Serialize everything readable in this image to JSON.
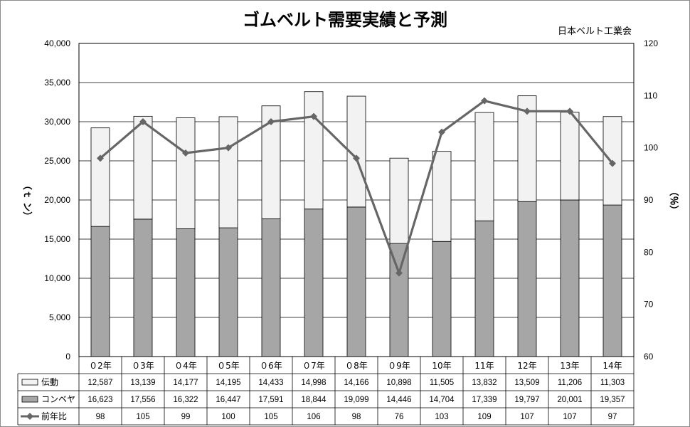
{
  "chart_data": {
    "type": "bar",
    "title": "ゴムベルト需要実績と予測",
    "source": "日本ベルト工業会",
    "ylabel_left": "（ｔ ン）",
    "ylabel_right": "（％）",
    "categories": [
      "０2年",
      "０3年",
      "０4年",
      "０5年",
      "０6年",
      "０7年",
      "０8年",
      "０9年",
      "10年",
      "11年",
      "12年",
      "13年",
      "14年"
    ],
    "series": [
      {
        "name": "伝動",
        "kind": "stacked-bar",
        "color": "#f2f2f2",
        "values": [
          12587,
          13139,
          14177,
          14195,
          14433,
          14998,
          14166,
          10898,
          11505,
          13832,
          13509,
          11206,
          11303
        ],
        "labels": [
          "12,587",
          "13,139",
          "14,177",
          "14,195",
          "14,433",
          "14,998",
          "14,166",
          "10,898",
          "11,505",
          "13,832",
          "13,509",
          "11,206",
          "11,303"
        ]
      },
      {
        "name": "コンベヤ",
        "kind": "stacked-bar",
        "color": "#a6a6a6",
        "values": [
          16623,
          17556,
          16322,
          16447,
          17591,
          18844,
          19099,
          14446,
          14704,
          17339,
          19797,
          20001,
          19357
        ],
        "labels": [
          "16,623",
          "17,556",
          "16,322",
          "16,447",
          "17,591",
          "18,844",
          "19,099",
          "14,446",
          "14,704",
          "17,339",
          "19,797",
          "20,001",
          "19,357"
        ]
      },
      {
        "name": "前年比",
        "kind": "line",
        "axis": "right",
        "color": "#666666",
        "values": [
          98,
          105,
          99,
          100,
          105,
          106,
          98,
          76,
          103,
          109,
          107,
          107,
          97
        ],
        "labels": [
          "98",
          "105",
          "99",
          "100",
          "105",
          "106",
          "98",
          "76",
          "103",
          "109",
          "107",
          "107",
          "97"
        ]
      }
    ],
    "ylim_left": [
      0,
      40000
    ],
    "ylim_right": [
      60,
      120
    ],
    "yticks_left": [
      "0",
      "5,000",
      "10,000",
      "15,000",
      "20,000",
      "25,000",
      "30,000",
      "35,000",
      "40,000"
    ],
    "yticks_right": [
      "60",
      "70",
      "80",
      "90",
      "100",
      "110",
      "120"
    ],
    "grid": true,
    "legend": "data-table"
  }
}
